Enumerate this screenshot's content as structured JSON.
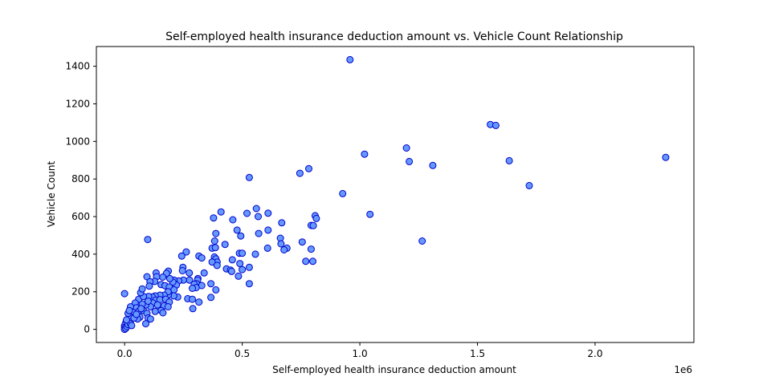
{
  "chart_data": {
    "type": "scatter",
    "title": "Self-employed health insurance deduction amount vs. Vehicle Count Relationship",
    "xlabel": "Self-employed health insurance deduction amount",
    "ylabel": "Vehicle Count",
    "x_offset_label": "1e6",
    "xlim": [
      -120000,
      2420000
    ],
    "ylim": [
      -70,
      1505
    ],
    "x_ticks": [
      0,
      500000,
      1000000,
      1500000,
      2000000
    ],
    "x_tick_labels": [
      "0.0",
      "0.5",
      "1.0",
      "1.5",
      "2.0"
    ],
    "y_ticks": [
      0,
      200,
      400,
      600,
      800,
      1000,
      1200,
      1400
    ],
    "y_tick_labels": [
      "0",
      "200",
      "400",
      "600",
      "800",
      "1000",
      "1200",
      "1400"
    ],
    "grid": false,
    "marker_face_color": "#6699ff",
    "marker_edge_color": "#0000cc",
    "points": [
      [
        958000,
        1435
      ],
      [
        1555000,
        1090
      ],
      [
        1578000,
        1085
      ],
      [
        2300000,
        915
      ],
      [
        1635000,
        897
      ],
      [
        1198000,
        965
      ],
      [
        1210000,
        893
      ],
      [
        1020000,
        932
      ],
      [
        1310000,
        872
      ],
      [
        1720000,
        765
      ],
      [
        1043000,
        612
      ],
      [
        1265000,
        470
      ],
      [
        927000,
        722
      ],
      [
        745000,
        830
      ],
      [
        783000,
        855
      ],
      [
        530000,
        808
      ],
      [
        810000,
        605
      ],
      [
        815000,
        590
      ],
      [
        793000,
        553
      ],
      [
        802000,
        552
      ],
      [
        755000,
        465
      ],
      [
        793000,
        427
      ],
      [
        770000,
        362
      ],
      [
        800000,
        362
      ],
      [
        668000,
        567
      ],
      [
        662000,
        485
      ],
      [
        665000,
        455
      ],
      [
        690000,
        432
      ],
      [
        678000,
        423
      ],
      [
        610000,
        618
      ],
      [
        610000,
        528
      ],
      [
        608000,
        432
      ],
      [
        560000,
        643
      ],
      [
        568000,
        600
      ],
      [
        520000,
        617
      ],
      [
        570000,
        510
      ],
      [
        556000,
        400
      ],
      [
        530000,
        330
      ],
      [
        530000,
        243
      ],
      [
        410000,
        625
      ],
      [
        460000,
        583
      ],
      [
        378000,
        593
      ],
      [
        388000,
        510
      ],
      [
        478000,
        528
      ],
      [
        494000,
        497
      ],
      [
        383000,
        470
      ],
      [
        427000,
        452
      ],
      [
        372000,
        432
      ],
      [
        386000,
        435
      ],
      [
        488000,
        405
      ],
      [
        500000,
        405
      ],
      [
        458000,
        370
      ],
      [
        490000,
        350
      ],
      [
        500000,
        318
      ],
      [
        433000,
        322
      ],
      [
        450000,
        315
      ],
      [
        455000,
        308
      ],
      [
        484000,
        283
      ],
      [
        382000,
        385
      ],
      [
        388000,
        375
      ],
      [
        393000,
        358
      ],
      [
        372000,
        358
      ],
      [
        393000,
        340
      ],
      [
        262000,
        412
      ],
      [
        243000,
        390
      ],
      [
        316000,
        390
      ],
      [
        328000,
        380
      ],
      [
        248000,
        330
      ],
      [
        246000,
        312
      ],
      [
        275000,
        300
      ],
      [
        338000,
        300
      ],
      [
        312000,
        270
      ],
      [
        310000,
        262
      ],
      [
        276000,
        262
      ],
      [
        306000,
        243
      ],
      [
        367000,
        243
      ],
      [
        388000,
        210
      ],
      [
        296000,
        240
      ],
      [
        328000,
        233
      ],
      [
        304000,
        222
      ],
      [
        288000,
        218
      ],
      [
        268000,
        163
      ],
      [
        288000,
        160
      ],
      [
        316000,
        145
      ],
      [
        367000,
        170
      ],
      [
        290000,
        110
      ],
      [
        250000,
        262
      ],
      [
        230000,
        258
      ],
      [
        210000,
        262
      ],
      [
        220000,
        236
      ],
      [
        205000,
        252
      ],
      [
        192000,
        270
      ],
      [
        186000,
        310
      ],
      [
        178000,
        298
      ],
      [
        162000,
        278
      ],
      [
        134000,
        300
      ],
      [
        136000,
        280
      ],
      [
        95000,
        280
      ],
      [
        128000,
        255
      ],
      [
        108000,
        253
      ],
      [
        105000,
        230
      ],
      [
        155000,
        238
      ],
      [
        172000,
        232
      ],
      [
        190000,
        225
      ],
      [
        210000,
        210
      ],
      [
        226000,
        172
      ],
      [
        209000,
        178
      ],
      [
        186000,
        183
      ],
      [
        185000,
        200
      ],
      [
        168000,
        182
      ],
      [
        150000,
        182
      ],
      [
        130000,
        178
      ],
      [
        118000,
        172
      ],
      [
        102000,
        175
      ],
      [
        132000,
        156
      ],
      [
        150000,
        158
      ],
      [
        175000,
        160
      ],
      [
        190000,
        145
      ],
      [
        168000,
        125
      ],
      [
        185000,
        120
      ],
      [
        155000,
        100
      ],
      [
        163000,
        88
      ],
      [
        120000,
        140
      ],
      [
        110000,
        120
      ],
      [
        90000,
        130
      ],
      [
        75000,
        135
      ],
      [
        60000,
        160
      ],
      [
        80000,
        175
      ],
      [
        68000,
        195
      ],
      [
        75000,
        215
      ],
      [
        98000,
        478
      ],
      [
        0,
        190
      ],
      [
        45000,
        140
      ],
      [
        40000,
        110
      ],
      [
        50000,
        115
      ],
      [
        60000,
        95
      ],
      [
        80000,
        100
      ],
      [
        95000,
        85
      ],
      [
        100000,
        60
      ],
      [
        110000,
        55
      ],
      [
        65000,
        65
      ],
      [
        55000,
        55
      ],
      [
        35000,
        90
      ],
      [
        25000,
        120
      ],
      [
        20000,
        70
      ],
      [
        15000,
        85
      ],
      [
        10000,
        45
      ],
      [
        5000,
        35
      ],
      [
        0,
        20
      ],
      [
        0,
        10
      ],
      [
        0,
        0
      ],
      [
        5000,
        5
      ],
      [
        10000,
        15
      ],
      [
        15000,
        25
      ],
      [
        25000,
        30
      ],
      [
        30000,
        20
      ],
      [
        8000,
        50
      ],
      [
        20000,
        100
      ],
      [
        40000,
        60
      ],
      [
        90000,
        30
      ],
      [
        50000,
        80
      ],
      [
        70000,
        110
      ],
      [
        130000,
        95
      ],
      [
        140000,
        130
      ],
      [
        100000,
        150
      ]
    ]
  }
}
